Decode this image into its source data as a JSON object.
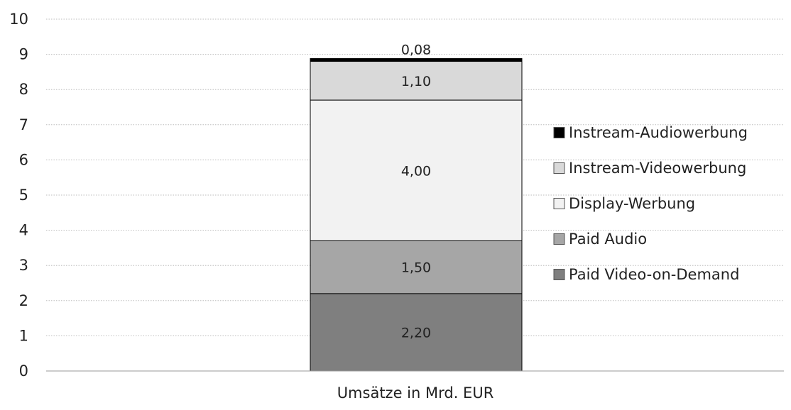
{
  "chart_data": {
    "type": "bar",
    "stacked": true,
    "categories": [
      "Umsätze in Mrd. EUR"
    ],
    "series": [
      {
        "name": "Paid Video-on-Demand",
        "values": [
          2.2
        ],
        "label": "2,20",
        "color": "#7f7f7f"
      },
      {
        "name": "Paid Audio",
        "values": [
          1.5
        ],
        "label": "1,50",
        "color": "#a6a6a6"
      },
      {
        "name": "Display-Werbung",
        "values": [
          4.0
        ],
        "label": "4,00",
        "color": "#f2f2f2"
      },
      {
        "name": "Instream-Videowerbung",
        "values": [
          1.1
        ],
        "label": "1,10",
        "color": "#d9d9d9"
      },
      {
        "name": "Instream-Audiowerbung",
        "values": [
          0.08
        ],
        "label": "0,08",
        "color": "#000000"
      }
    ],
    "legend_order": [
      "Instream-Audiowerbung",
      "Instream-Videowerbung",
      "Display-Werbung",
      "Paid Audio",
      "Paid Video-on-Demand"
    ],
    "ylim": [
      0,
      10
    ],
    "yticks": [
      0,
      1,
      2,
      3,
      4,
      5,
      6,
      7,
      8,
      9,
      10
    ],
    "xlabel": "Umsätze in Mrd. EUR",
    "ylabel": "",
    "title": "",
    "grid": true,
    "legend_position": "right"
  }
}
